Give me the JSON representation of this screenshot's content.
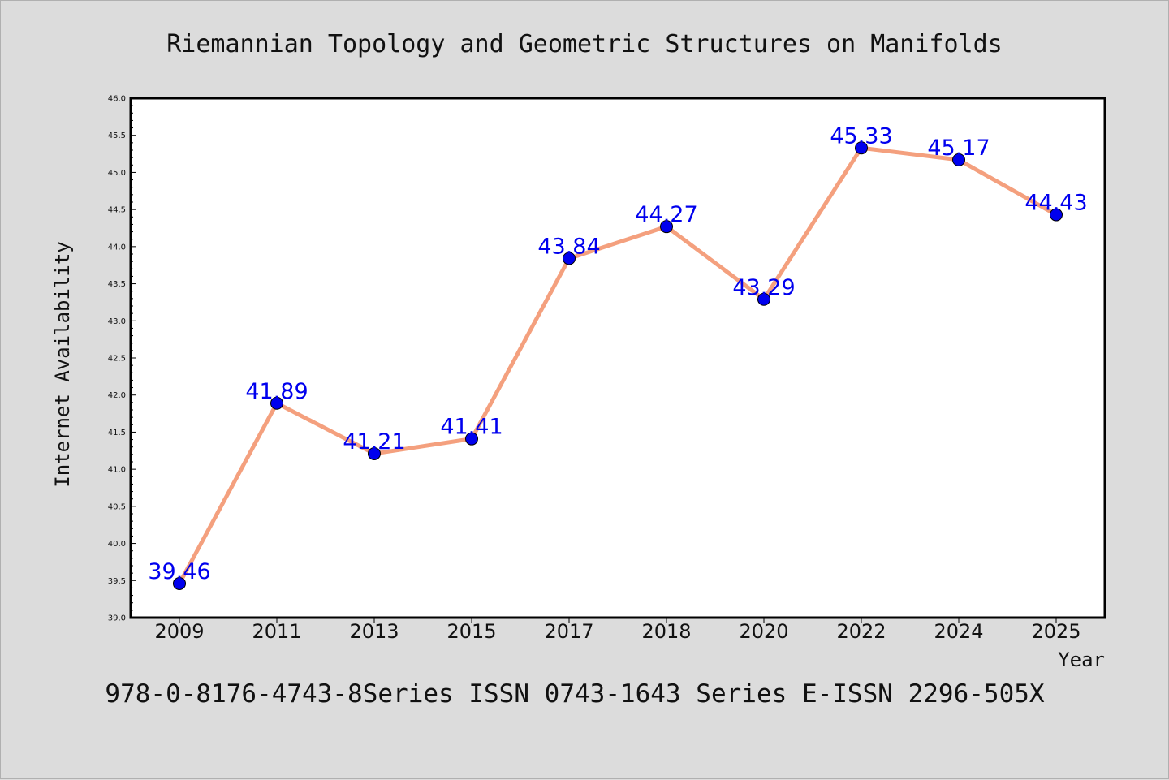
{
  "chart_data": {
    "type": "line",
    "title": "Riemannian Topology and Geometric Structures on Manifolds",
    "xlabel": "Year",
    "ylabel": "Internet Availability",
    "categories": [
      "2009",
      "2011",
      "2013",
      "2015",
      "2017",
      "2018",
      "2020",
      "2022",
      "2024",
      "2025"
    ],
    "series": [
      {
        "values": [
          39.46,
          41.89,
          41.21,
          41.41,
          43.84,
          44.27,
          43.29,
          45.33,
          45.17,
          44.43
        ],
        "data_labels": [
          "39.46",
          "41.89",
          "41.21",
          "41.41",
          "43.84",
          "44.27",
          "43.29",
          "45.33",
          "45.17",
          "44.43"
        ]
      }
    ],
    "ylim": [
      39.0,
      46.0
    ],
    "yticks": [
      "39.0",
      "39.5",
      "40.0",
      "40.5",
      "41.0",
      "41.5",
      "42.0",
      "42.5",
      "43.0",
      "43.5",
      "44.0",
      "44.5",
      "45.0",
      "45.5",
      "46.0"
    ],
    "grid": false,
    "colors": {
      "line": "#f4a07e",
      "marker": "#0000ee",
      "label": "#0000ee",
      "background": "#dcdcdc",
      "plot_background": "#ffffff"
    }
  },
  "footer": "978-0-8176-4743-8Series ISSN 0743-1643 Series E-ISSN 2296-505X"
}
